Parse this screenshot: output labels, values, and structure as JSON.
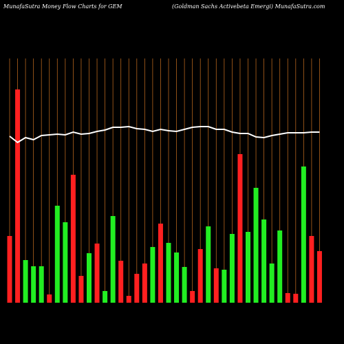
{
  "chart_data": {
    "type": "bar",
    "title": "MunafaSutra  Money Flow  Charts for GEM",
    "subtitle": "(Goldman  Sachs Activebeta  Emergi) MunafaSutra.com",
    "categories": [
      null,
      null,
      null,
      null,
      null,
      null,
      null,
      null,
      null,
      null,
      null,
      null,
      null,
      null,
      null,
      null,
      null,
      null,
      null,
      null,
      null,
      null,
      null,
      null,
      null,
      null,
      null,
      null,
      null,
      null,
      null,
      null,
      null,
      null,
      null,
      null,
      null,
      null,
      null,
      null
    ],
    "ylim": [
      0,
      310
    ],
    "grid": true,
    "grid_color": "#b5651d",
    "series": [
      {
        "type": "bar",
        "colors": [
          "#ff2020",
          "#ff2020",
          "#22ee22",
          "#22ee22",
          "#22ee22",
          "#ff2020",
          "#22ee22",
          "#22ee22",
          "#ff2020",
          "#ff2020",
          "#22ee22",
          "#ff2020",
          "#22ee22",
          "#22ee22",
          "#ff2020",
          "#ff2020",
          "#ff2020",
          "#ff2020",
          "#22ee22",
          "#ff2020",
          "#22ee22",
          "#22ee22",
          "#22ee22",
          "#ff2020",
          "#ff2020",
          "#22ee22",
          "#ff2020",
          "#22ee22",
          "#22ee22",
          "#ff2020",
          "#22ee22",
          "#22ee22",
          "#22ee22",
          "#22ee22",
          "#22ee22",
          "#ff2020",
          "#ff2020",
          "#22ee22",
          "#ff2020",
          "#ff2020"
        ],
        "values": [
          97,
          310,
          62,
          53,
          53,
          12,
          141,
          117,
          186,
          39,
          72,
          86,
          17,
          126,
          61,
          10,
          42,
          57,
          81,
          115,
          87,
          73,
          52,
          17,
          78,
          111,
          50,
          48,
          100,
          216,
          103,
          167,
          121,
          57,
          105,
          14,
          13,
          198,
          97,
          75
        ]
      },
      {
        "type": "line",
        "color": "#ffffff",
        "values": [
          242,
          233,
          240,
          237,
          243,
          244,
          245,
          244,
          248,
          245,
          246,
          249,
          251,
          255,
          255,
          256,
          253,
          252,
          249,
          252,
          250,
          249,
          252,
          255,
          256,
          256,
          252,
          252,
          248,
          246,
          246,
          241,
          240,
          243,
          245,
          247,
          247,
          247,
          248,
          248
        ]
      }
    ]
  }
}
